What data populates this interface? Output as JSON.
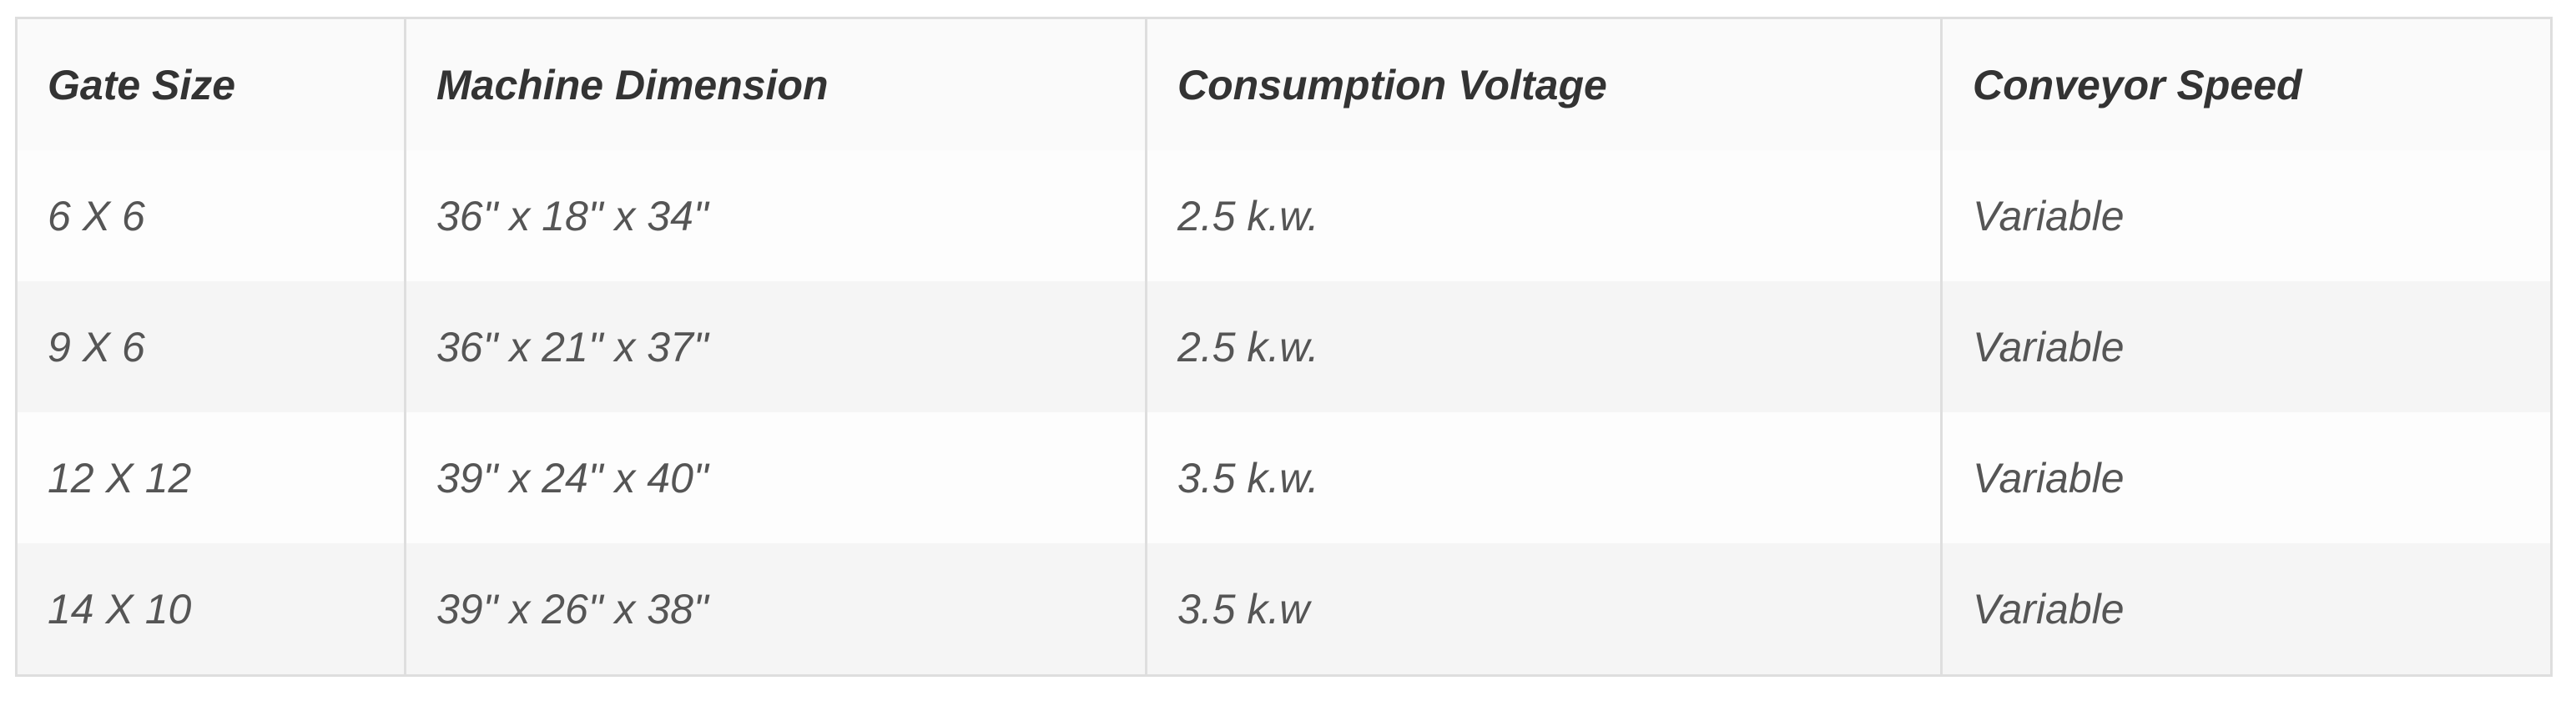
{
  "table": {
    "header": [
      "Gate Size",
      "Machine Dimension",
      "Consumption Voltage",
      "Conveyor Speed"
    ],
    "rows": [
      [
        "6 X 6",
        "36\" x 18\" x 34\"",
        "2.5 k.w.",
        "Variable"
      ],
      [
        "9 X 6",
        "36\" x 21\" x 37\"",
        "2.5 k.w.",
        "Variable"
      ],
      [
        "12 X 12",
        "39\" x 24\" x 40\"",
        "3.5 k.w.",
        "Variable"
      ],
      [
        "14 X 10",
        "39\" x 26\" x 38\"",
        "3.5 k.w",
        "Variable"
      ]
    ]
  }
}
